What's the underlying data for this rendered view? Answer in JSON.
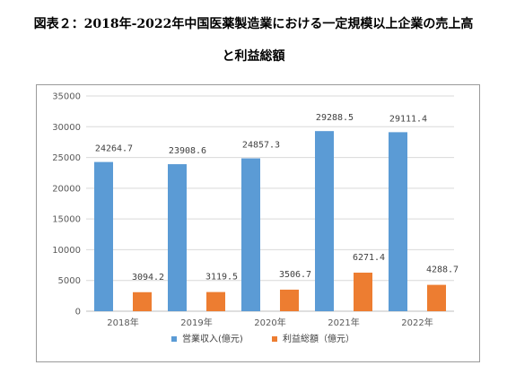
{
  "title_lines": [
    "図表２：2018年-2022年中国医薬製造業における一定規模以上企業の売上高",
    "と利益総額"
  ],
  "chart_data": {
    "type": "bar",
    "categories": [
      "2018年",
      "2019年",
      "2020年",
      "2021年",
      "2022年"
    ],
    "series": [
      {
        "name": "営業収入(億元)",
        "values": [
          24264.7,
          23908.6,
          24857.3,
          29288.5,
          29111.4
        ],
        "labels": [
          "24264.7",
          "23908.6",
          "24857.3",
          "29288.5",
          "29111.4"
        ],
        "color": "#5b9bd5"
      },
      {
        "name": "利益総額（億元）",
        "values": [
          3094.2,
          3119.5,
          3506.7,
          6271.4,
          4288.7
        ],
        "labels": [
          "3094.2",
          "3119.5",
          "3506.7",
          "6271.4",
          "4288.7"
        ],
        "color": "#ed7d31"
      }
    ],
    "ylim": [
      0,
      35000
    ],
    "yticks": [
      0,
      5000,
      10000,
      15000,
      20000,
      25000,
      30000,
      35000
    ],
    "ytick_labels": [
      "0",
      "5000",
      "10000",
      "15000",
      "20000",
      "25000",
      "30000",
      "35000"
    ],
    "grid": true,
    "legend": "bottom"
  }
}
